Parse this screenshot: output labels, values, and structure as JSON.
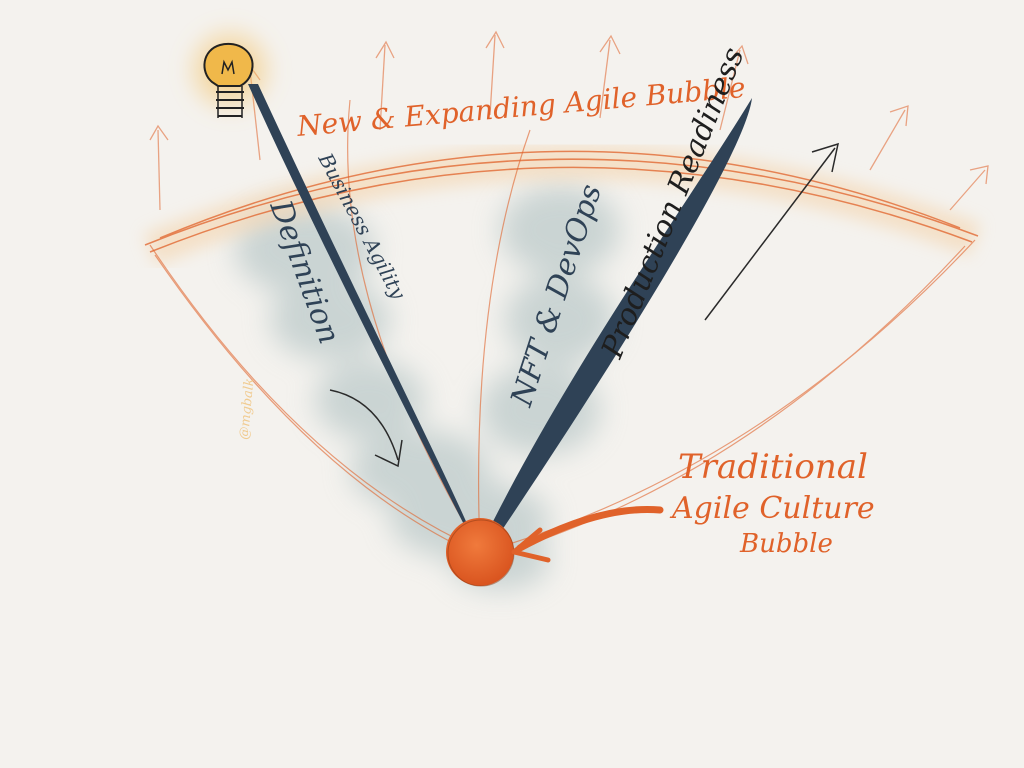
{
  "sketch": {
    "bubble_label": "New & Expanding Agile Bubble",
    "left_branch_label": "Definition",
    "left_branch_sublabel": "Business Agility",
    "right_branch_label": "NFT & DevOps",
    "right_branch_sublabel": "Production Readiness",
    "core_label_line1": "Traditional",
    "core_label_line2": "Agile Culture",
    "core_label_line3": "Bubble",
    "signature": "@mgbalk",
    "colors": {
      "orange": "#e0622a",
      "navy": "#2f4256",
      "wash": "#a8bcbd",
      "glow": "#f3c46d",
      "paper": "#f4f2ee"
    }
  }
}
